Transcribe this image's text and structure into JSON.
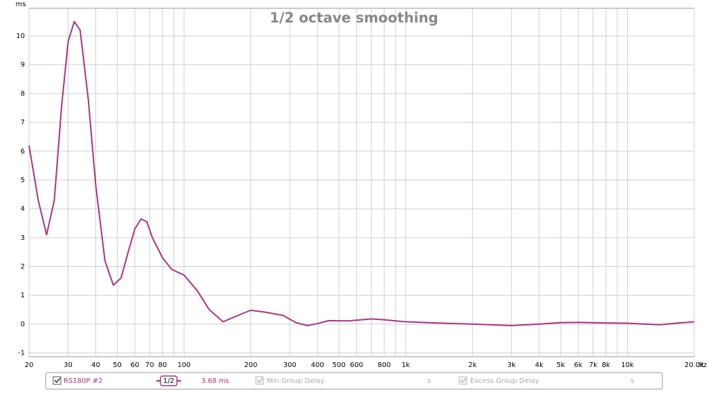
{
  "chart_data": {
    "type": "line",
    "title": "1/2 octave smoothing",
    "y_label": "ms",
    "x_label": "Hz",
    "x_log": true,
    "grid": true,
    "xlim": [
      20,
      20000
    ],
    "ylim": [
      -1.13,
      10.96
    ],
    "yticks": [
      -1,
      0,
      1,
      2,
      3,
      4,
      5,
      6,
      7,
      8,
      9,
      10
    ],
    "xticks": [
      20,
      30,
      40,
      50,
      60,
      70,
      80,
      100,
      200,
      300,
      400,
      500,
      600,
      800,
      {
        "value": 1000,
        "label": "1k"
      },
      {
        "value": 2000,
        "label": "2k"
      },
      {
        "value": 3000,
        "label": "3k"
      },
      {
        "value": 4000,
        "label": "4k"
      },
      {
        "value": 5000,
        "label": "5k"
      },
      {
        "value": 6000,
        "label": "6k"
      },
      {
        "value": 7000,
        "label": "7k"
      },
      {
        "value": 8000,
        "label": "8k"
      },
      {
        "value": 10000,
        "label": "10k"
      },
      {
        "value": 20000,
        "label": "20.0k"
      }
    ],
    "minor_xgrid": [
      90,
      700,
      900,
      9000
    ],
    "x": [
      20,
      22,
      24,
      26,
      28,
      30,
      32,
      34,
      37,
      40,
      44,
      48,
      52,
      56,
      60,
      64,
      68,
      72,
      80,
      88,
      100,
      115,
      130,
      150,
      175,
      200,
      230,
      280,
      320,
      360,
      400,
      450,
      550,
      700,
      800,
      1000,
      1500,
      2000,
      3000,
      4000,
      5000,
      6000,
      8000,
      10000,
      12000,
      14000,
      17000,
      20000
    ],
    "series": [
      {
        "name": "RS180P #2",
        "color": "#b0307f",
        "values": [
          6.2,
          4.3,
          3.1,
          4.3,
          7.5,
          9.8,
          10.5,
          10.2,
          7.8,
          4.8,
          2.2,
          1.35,
          1.6,
          2.5,
          3.3,
          3.65,
          3.55,
          3.0,
          2.3,
          1.9,
          1.7,
          1.15,
          0.5,
          0.08,
          0.3,
          0.48,
          0.42,
          0.3,
          0.05,
          -0.05,
          0.02,
          0.12,
          0.11,
          0.18,
          0.15,
          0.08,
          0.03,
          0.0,
          -0.05,
          0.0,
          0.05,
          0.06,
          0.04,
          0.03,
          0.0,
          -0.02,
          0.04,
          0.08
        ]
      }
    ],
    "legend_bar": {
      "smoothing": "1/2",
      "value": "3.68 ms",
      "min_label": "Min Group Delay",
      "min_unit": "s",
      "excess_label": "Excess Group Delay",
      "excess_unit": "s"
    }
  }
}
